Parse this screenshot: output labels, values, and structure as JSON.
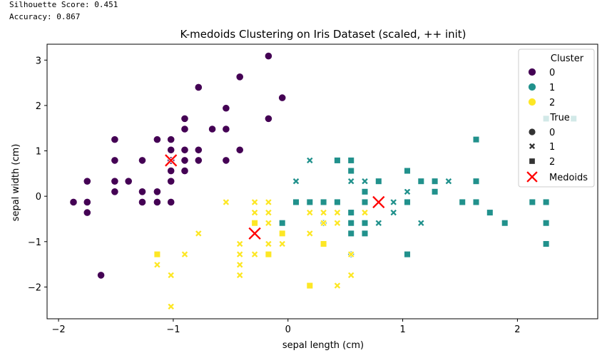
{
  "stats": {
    "silhouette": "Silhouette Score: 0.451",
    "accuracy": "Accuracy: 0.867"
  },
  "colors": {
    "c0": "#440154",
    "c1": "#21918c",
    "c2": "#fde725",
    "medoid": "#ff0000"
  },
  "chart_data": {
    "type": "scatter",
    "title": "K-medoids Clustering on Iris Dataset (scaled, ++ init)",
    "xlabel": "sepal length (cm)",
    "ylabel": "sepal width (cm)",
    "xlim": [
      -2.1,
      2.7
    ],
    "ylim": [
      -2.7,
      3.35
    ],
    "xticks": [
      -2,
      -1,
      0,
      1,
      2
    ],
    "xtick_labels": [
      "−2",
      "−1",
      "0",
      "1",
      "2"
    ],
    "yticks": [
      -2,
      -1,
      0,
      1,
      2,
      3
    ],
    "ytick_labels": [
      "−2",
      "−1",
      "0",
      "1",
      "2",
      "3"
    ],
    "legend": {
      "position": "top-right",
      "cluster_title": "Cluster",
      "cluster_labels": [
        "0",
        "1",
        "2"
      ],
      "true_title": "True",
      "true_labels": [
        "0",
        "1",
        "2"
      ],
      "medoid_label": "Medoids"
    },
    "medoids": [
      [
        -1.02,
        0.79
      ],
      [
        -0.29,
        -0.82
      ],
      [
        0.79,
        -0.13
      ]
    ],
    "points": [
      [
        -1.87,
        -0.13,
        0,
        0
      ],
      [
        -1.75,
        0.33,
        0,
        0
      ],
      [
        -1.75,
        -0.13,
        0,
        0
      ],
      [
        -1.75,
        -0.36,
        0,
        0
      ],
      [
        -1.63,
        -1.74,
        0,
        0
      ],
      [
        -1.51,
        1.25,
        0,
        0
      ],
      [
        -1.51,
        0.79,
        0,
        0
      ],
      [
        -1.51,
        0.33,
        0,
        0
      ],
      [
        -1.51,
        0.1,
        0,
        0
      ],
      [
        -1.39,
        0.33,
        0,
        0
      ],
      [
        -1.27,
        0.79,
        0,
        0
      ],
      [
        -1.27,
        0.1,
        0,
        0
      ],
      [
        -1.27,
        -0.13,
        0,
        0
      ],
      [
        -1.14,
        1.25,
        0,
        0
      ],
      [
        -1.14,
        0.1,
        0,
        0
      ],
      [
        -1.14,
        -0.13,
        0,
        0
      ],
      [
        -1.02,
        1.25,
        0,
        0
      ],
      [
        -1.02,
        1.02,
        0,
        0
      ],
      [
        -1.02,
        0.79,
        0,
        0
      ],
      [
        -1.02,
        0.56,
        0,
        0
      ],
      [
        -1.02,
        0.33,
        0,
        0
      ],
      [
        -1.02,
        -0.13,
        0,
        0
      ],
      [
        -0.9,
        1.71,
        0,
        0
      ],
      [
        -0.9,
        1.48,
        0,
        0
      ],
      [
        -0.9,
        1.02,
        0,
        0
      ],
      [
        -0.9,
        0.79,
        0,
        0
      ],
      [
        -0.9,
        0.56,
        0,
        0
      ],
      [
        -0.78,
        2.4,
        0,
        0
      ],
      [
        -0.78,
        1.02,
        0,
        0
      ],
      [
        -0.78,
        0.79,
        0,
        0
      ],
      [
        -0.66,
        1.48,
        0,
        0
      ],
      [
        -0.54,
        1.94,
        0,
        0
      ],
      [
        -0.54,
        1.48,
        0,
        0
      ],
      [
        -0.54,
        0.79,
        0,
        0
      ],
      [
        -0.42,
        2.63,
        0,
        0
      ],
      [
        -0.42,
        1.02,
        0,
        0
      ],
      [
        -0.17,
        3.09,
        0,
        0
      ],
      [
        -0.17,
        1.71,
        0,
        0
      ],
      [
        -0.05,
        2.17,
        0,
        0
      ],
      [
        0.07,
        0.33,
        1,
        1
      ],
      [
        0.19,
        0.79,
        1,
        1
      ],
      [
        0.31,
        -0.13,
        1,
        2
      ],
      [
        0.43,
        0.79,
        1,
        2
      ],
      [
        0.55,
        0.79,
        1,
        2
      ],
      [
        0.55,
        0.56,
        1,
        2
      ],
      [
        0.55,
        0.33,
        1,
        1
      ],
      [
        0.67,
        0.33,
        1,
        1
      ],
      [
        0.67,
        0.1,
        1,
        2
      ],
      [
        0.67,
        -0.13,
        1,
        2
      ],
      [
        0.79,
        0.33,
        1,
        2
      ],
      [
        0.79,
        -0.59,
        1,
        1
      ],
      [
        0.92,
        -0.13,
        1,
        1
      ],
      [
        0.92,
        -0.36,
        1,
        1
      ],
      [
        1.04,
        0.56,
        1,
        2
      ],
      [
        1.04,
        0.1,
        1,
        1
      ],
      [
        1.04,
        -0.13,
        1,
        2
      ],
      [
        1.04,
        -1.28,
        1,
        2
      ],
      [
        1.16,
        0.33,
        1,
        2
      ],
      [
        1.16,
        -0.59,
        1,
        1
      ],
      [
        1.28,
        0.33,
        1,
        2
      ],
      [
        1.28,
        0.1,
        1,
        2
      ],
      [
        1.4,
        0.33,
        1,
        1
      ],
      [
        1.52,
        -0.13,
        1,
        2
      ],
      [
        1.64,
        1.25,
        1,
        2
      ],
      [
        1.64,
        0.33,
        1,
        2
      ],
      [
        1.64,
        -0.13,
        1,
        2
      ],
      [
        1.76,
        -0.36,
        1,
        2
      ],
      [
        1.89,
        -0.59,
        1,
        2
      ],
      [
        2.13,
        -0.13,
        1,
        2
      ],
      [
        2.25,
        1.71,
        1,
        2
      ],
      [
        2.25,
        -0.13,
        1,
        2
      ],
      [
        2.25,
        -0.59,
        1,
        2
      ],
      [
        2.25,
        -1.05,
        1,
        2
      ],
      [
        2.49,
        1.71,
        1,
        2
      ],
      [
        0.31,
        -0.59,
        1,
        2
      ],
      [
        0.43,
        -0.13,
        1,
        2
      ],
      [
        0.55,
        -0.36,
        1,
        2
      ],
      [
        0.55,
        -0.59,
        1,
        2
      ],
      [
        0.55,
        -0.82,
        1,
        2
      ],
      [
        0.67,
        -0.59,
        1,
        2
      ],
      [
        0.67,
        -0.82,
        1,
        2
      ],
      [
        0.55,
        -1.28,
        1,
        2
      ],
      [
        0.07,
        -0.13,
        1,
        2
      ],
      [
        -0.05,
        -0.59,
        1,
        2
      ],
      [
        0.19,
        -0.13,
        1,
        2
      ],
      [
        -1.02,
        -1.74,
        2,
        1
      ],
      [
        -1.02,
        -2.43,
        2,
        1
      ],
      [
        -1.14,
        -1.51,
        2,
        1
      ],
      [
        -1.14,
        -1.28,
        2,
        2
      ],
      [
        -0.9,
        -1.28,
        2,
        1
      ],
      [
        -0.78,
        -0.82,
        2,
        1
      ],
      [
        -0.54,
        -0.13,
        2,
        1
      ],
      [
        -0.42,
        -1.05,
        2,
        1
      ],
      [
        -0.42,
        -1.28,
        2,
        1
      ],
      [
        -0.42,
        -1.51,
        2,
        1
      ],
      [
        -0.42,
        -1.74,
        2,
        1
      ],
      [
        -0.29,
        -0.13,
        2,
        1
      ],
      [
        -0.29,
        -0.36,
        2,
        1
      ],
      [
        -0.29,
        -0.59,
        2,
        2
      ],
      [
        -0.29,
        -1.28,
        2,
        1
      ],
      [
        -0.17,
        -0.13,
        2,
        1
      ],
      [
        -0.17,
        -0.36,
        2,
        1
      ],
      [
        -0.17,
        -0.59,
        2,
        1
      ],
      [
        -0.17,
        -1.05,
        2,
        1
      ],
      [
        -0.17,
        -1.28,
        2,
        2
      ],
      [
        -0.05,
        -0.82,
        2,
        2
      ],
      [
        -0.05,
        -1.05,
        2,
        1
      ],
      [
        0.19,
        -0.36,
        2,
        1
      ],
      [
        0.19,
        -0.82,
        2,
        1
      ],
      [
        0.19,
        -1.97,
        2,
        2
      ],
      [
        0.31,
        -0.36,
        2,
        1
      ],
      [
        0.31,
        -0.59,
        2,
        1
      ],
      [
        0.31,
        -1.05,
        2,
        2
      ],
      [
        0.43,
        -0.36,
        2,
        1
      ],
      [
        0.43,
        -0.59,
        2,
        1
      ],
      [
        0.43,
        -1.97,
        2,
        1
      ],
      [
        0.55,
        -1.28,
        2,
        1
      ],
      [
        0.55,
        -1.74,
        2,
        1
      ],
      [
        0.67,
        -0.36,
        2,
        1
      ]
    ]
  }
}
